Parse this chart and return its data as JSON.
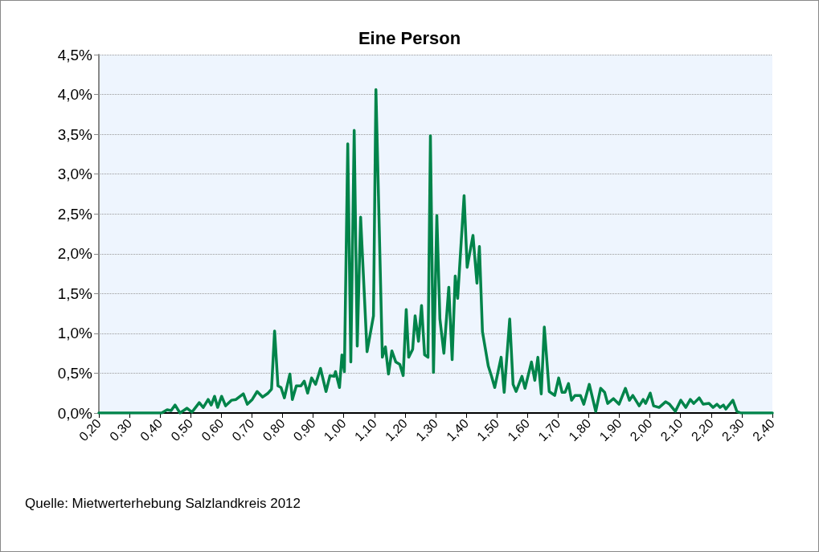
{
  "chart_data": {
    "type": "line",
    "title": "Eine Person",
    "annotations": [
      "Quelle: Mietwerterhebung Salzlandkreis 2012"
    ],
    "x": [
      0.2,
      0.405,
      0.423,
      0.436,
      0.449,
      0.465,
      0.488,
      0.504,
      0.528,
      0.541,
      0.557,
      0.567,
      0.578,
      0.588,
      0.601,
      0.614,
      0.633,
      0.648,
      0.672,
      0.685,
      0.701,
      0.717,
      0.735,
      0.753,
      0.764,
      0.774,
      0.785,
      0.795,
      0.806,
      0.824,
      0.832,
      0.845,
      0.86,
      0.871,
      0.882,
      0.895,
      0.908,
      0.924,
      0.942,
      0.955,
      0.968,
      0.973,
      0.986,
      0.994,
      1.002,
      1.013,
      1.023,
      1.034,
      1.044,
      1.055,
      1.076,
      1.097,
      1.105,
      1.126,
      1.136,
      1.146,
      1.157,
      1.17,
      1.183,
      1.194,
      1.204,
      1.212,
      1.225,
      1.233,
      1.244,
      1.254,
      1.264,
      1.275,
      1.283,
      1.293,
      1.304,
      1.314,
      1.327,
      1.343,
      1.354,
      1.364,
      1.372,
      1.393,
      1.403,
      1.422,
      1.435,
      1.443,
      1.453,
      1.472,
      1.482,
      1.493,
      1.514,
      1.524,
      1.542,
      1.553,
      1.563,
      1.582,
      1.592,
      1.613,
      1.624,
      1.634,
      1.645,
      1.655,
      1.671,
      1.689,
      1.702,
      1.713,
      1.723,
      1.734,
      1.744,
      1.755,
      1.773,
      1.784,
      1.802,
      1.823,
      1.839,
      1.852,
      1.862,
      1.881,
      1.899,
      1.92,
      1.933,
      1.944,
      1.965,
      1.978,
      1.986,
      2.001,
      2.012,
      2.03,
      2.051,
      2.064,
      2.083,
      2.101,
      2.117,
      2.132,
      2.143,
      2.161,
      2.174,
      2.193,
      2.206,
      2.219,
      2.229,
      2.24,
      2.248,
      2.271,
      2.284,
      2.297,
      2.4
    ],
    "series": [
      {
        "color": "#00844a",
        "values": [
          0,
          0,
          0.04,
          0.03,
          0.1,
          0,
          0.06,
          0.01,
          0.13,
          0.07,
          0.17,
          0.1,
          0.21,
          0.07,
          0.21,
          0.09,
          0.16,
          0.17,
          0.24,
          0.11,
          0.17,
          0.27,
          0.2,
          0.25,
          0.3,
          1.03,
          0.34,
          0.32,
          0.19,
          0.49,
          0.17,
          0.34,
          0.34,
          0.4,
          0.25,
          0.44,
          0.36,
          0.56,
          0.27,
          0.47,
          0.46,
          0.52,
          0.32,
          0.73,
          0.52,
          3.38,
          0.64,
          3.55,
          0.84,
          2.46,
          0.77,
          1.22,
          4.06,
          0.7,
          0.83,
          0.49,
          0.78,
          0.64,
          0.61,
          0.47,
          1.3,
          0.7,
          0.8,
          1.22,
          0.9,
          1.35,
          0.73,
          0.7,
          3.48,
          0.51,
          2.48,
          1.18,
          0.75,
          1.58,
          0.67,
          1.72,
          1.44,
          2.73,
          1.83,
          2.23,
          1.63,
          2.09,
          1.02,
          0.59,
          0.47,
          0.32,
          0.7,
          0.26,
          1.18,
          0.36,
          0.27,
          0.46,
          0.31,
          0.64,
          0.41,
          0.7,
          0.24,
          1.08,
          0.27,
          0.22,
          0.44,
          0.26,
          0.26,
          0.37,
          0.16,
          0.22,
          0.22,
          0.11,
          0.36,
          0.02,
          0.31,
          0.26,
          0.12,
          0.18,
          0.11,
          0.31,
          0.16,
          0.22,
          0.09,
          0.17,
          0.12,
          0.25,
          0.09,
          0.07,
          0.14,
          0.11,
          0.02,
          0.16,
          0.07,
          0.17,
          0.12,
          0.19,
          0.11,
          0.12,
          0.07,
          0.11,
          0.07,
          0.1,
          0.05,
          0.16,
          0.02,
          0,
          0
        ]
      }
    ],
    "xlim": [
      0.2,
      2.4
    ],
    "xticks": [
      {
        "value": 0.2,
        "label": "0,20"
      },
      {
        "value": 0.3,
        "label": "0,30"
      },
      {
        "value": 0.4,
        "label": "0,40"
      },
      {
        "value": 0.5,
        "label": "0,50"
      },
      {
        "value": 0.6,
        "label": "0,60"
      },
      {
        "value": 0.7,
        "label": "0,70"
      },
      {
        "value": 0.8,
        "label": "0,80"
      },
      {
        "value": 0.9,
        "label": "0,90"
      },
      {
        "value": 1.0,
        "label": "1,00"
      },
      {
        "value": 1.1,
        "label": "1,10"
      },
      {
        "value": 1.2,
        "label": "1,20"
      },
      {
        "value": 1.3,
        "label": "1,30"
      },
      {
        "value": 1.4,
        "label": "1,40"
      },
      {
        "value": 1.5,
        "label": "1,50"
      },
      {
        "value": 1.6,
        "label": "1,60"
      },
      {
        "value": 1.7,
        "label": "1,70"
      },
      {
        "value": 1.8,
        "label": "1,80"
      },
      {
        "value": 1.9,
        "label": "1,90"
      },
      {
        "value": 2.0,
        "label": "2,00"
      },
      {
        "value": 2.1,
        "label": "2,10"
      },
      {
        "value": 2.2,
        "label": "2,20"
      },
      {
        "value": 2.3,
        "label": "2,30"
      },
      {
        "value": 2.4,
        "label": "2,40"
      }
    ],
    "ylim": [
      0,
      4.5
    ],
    "yticks": [
      {
        "value": 0,
        "label": "0,0%"
      },
      {
        "value": 0.5,
        "label": "0,5%"
      },
      {
        "value": 1.0,
        "label": "1,0%"
      },
      {
        "value": 1.5,
        "label": "1,5%"
      },
      {
        "value": 2.0,
        "label": "2,0%"
      },
      {
        "value": 2.5,
        "label": "2,5%"
      },
      {
        "value": 3.0,
        "label": "3,0%"
      },
      {
        "value": 3.5,
        "label": "3,5%"
      },
      {
        "value": 4.0,
        "label": "4,0%"
      },
      {
        "value": 4.5,
        "label": "4,5%"
      }
    ],
    "grid": "y",
    "marker": "none",
    "line_style": "solid"
  }
}
